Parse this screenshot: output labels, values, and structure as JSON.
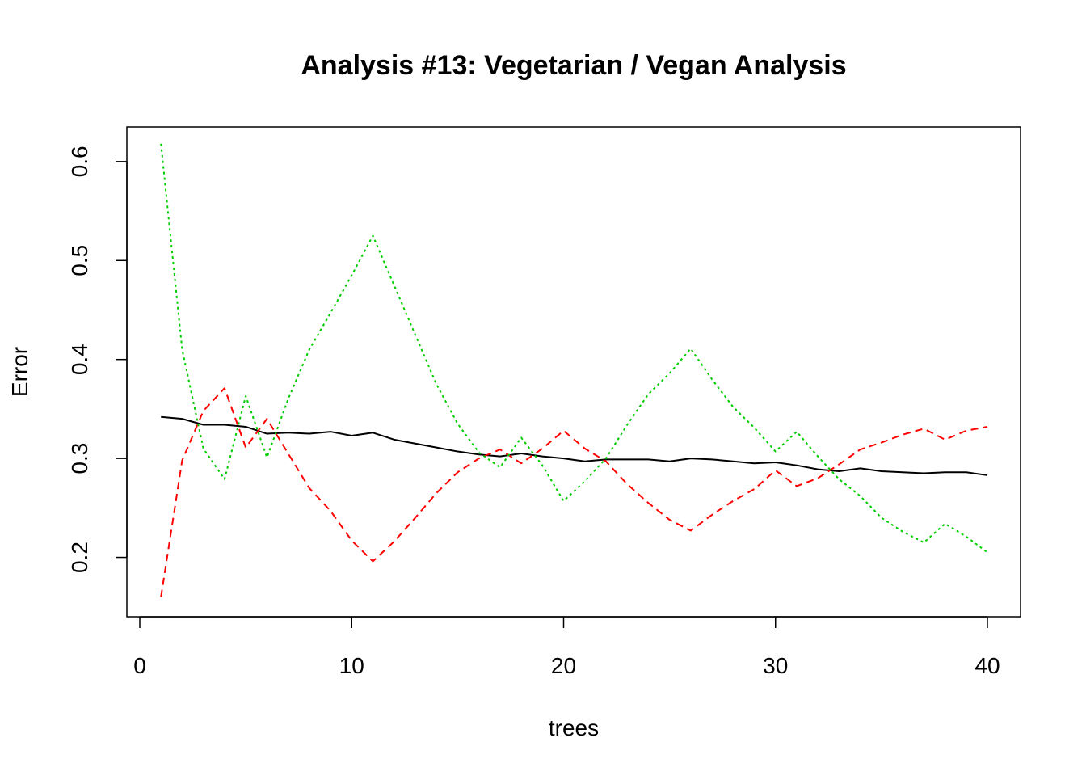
{
  "chart_data": {
    "type": "line",
    "title": "Analysis #13: Vegetarian / Vegan Analysis",
    "xlabel": "trees",
    "ylabel": "Error",
    "xlim": [
      0,
      41
    ],
    "ylim": [
      0.14,
      0.635
    ],
    "x_ticks": [
      0,
      10,
      20,
      30,
      40
    ],
    "y_ticks": [
      0.2,
      0.3,
      0.4,
      0.5,
      0.6
    ],
    "x_tick_labels": [
      "0",
      "10",
      "20",
      "30",
      "40"
    ],
    "y_tick_labels": [
      "0.2",
      "0.3",
      "0.4",
      "0.5",
      "0.6"
    ],
    "grid": false,
    "legend": "none",
    "x": [
      1,
      2,
      3,
      4,
      5,
      6,
      7,
      8,
      9,
      10,
      11,
      12,
      13,
      14,
      15,
      16,
      17,
      18,
      19,
      20,
      21,
      22,
      23,
      24,
      25,
      26,
      27,
      28,
      29,
      30,
      31,
      32,
      33,
      34,
      35,
      36,
      37,
      38,
      39,
      40
    ],
    "series": [
      {
        "color": "#000000",
        "dash": "solid",
        "values": [
          0.342,
          0.34,
          0.334,
          0.334,
          0.332,
          0.325,
          0.326,
          0.325,
          0.327,
          0.323,
          0.326,
          0.319,
          0.315,
          0.311,
          0.307,
          0.304,
          0.302,
          0.305,
          0.302,
          0.3,
          0.297,
          0.299,
          0.299,
          0.299,
          0.297,
          0.3,
          0.299,
          0.297,
          0.295,
          0.296,
          0.293,
          0.289,
          0.287,
          0.29,
          0.287,
          0.286,
          0.285,
          0.286,
          0.286,
          0.283
        ]
      },
      {
        "color": "#ff0000",
        "dash": "dashed",
        "values": [
          0.16,
          0.298,
          0.348,
          0.371,
          0.311,
          0.34,
          0.305,
          0.27,
          0.247,
          0.217,
          0.196,
          0.216,
          0.24,
          0.265,
          0.286,
          0.3,
          0.309,
          0.295,
          0.31,
          0.328,
          0.31,
          0.297,
          0.274,
          0.255,
          0.238,
          0.227,
          0.243,
          0.257,
          0.269,
          0.288,
          0.272,
          0.28,
          0.294,
          0.309,
          0.316,
          0.324,
          0.33,
          0.319,
          0.328,
          0.332
        ]
      },
      {
        "color": "#00cd00",
        "dash": "dotted",
        "values": [
          0.618,
          0.41,
          0.31,
          0.279,
          0.363,
          0.301,
          0.36,
          0.41,
          0.447,
          0.485,
          0.525,
          0.475,
          0.425,
          0.375,
          0.335,
          0.306,
          0.291,
          0.321,
          0.293,
          0.257,
          0.277,
          0.3,
          0.334,
          0.365,
          0.386,
          0.411,
          0.38,
          0.352,
          0.331,
          0.307,
          0.327,
          0.302,
          0.279,
          0.262,
          0.24,
          0.226,
          0.215,
          0.234,
          0.221,
          0.205
        ]
      }
    ]
  }
}
